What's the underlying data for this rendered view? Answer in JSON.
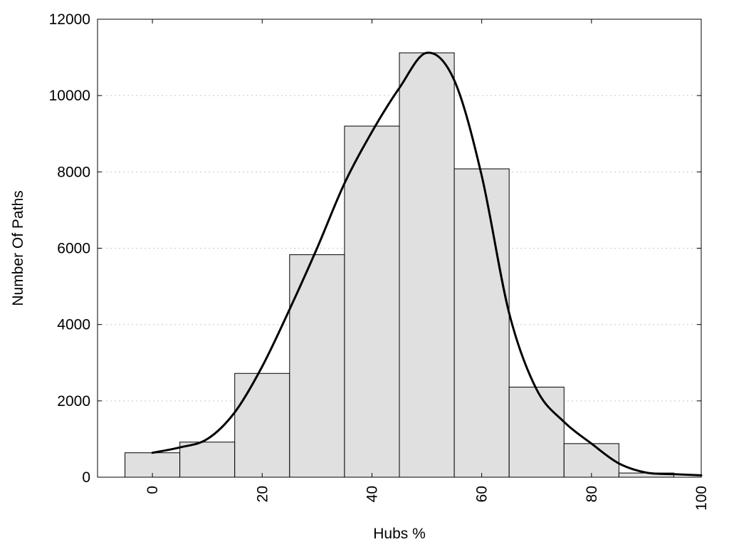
{
  "chart_data": {
    "type": "bar",
    "title": "",
    "xlabel": "Hubs %",
    "ylabel": "Number Of Paths",
    "xlim": [
      -10,
      100
    ],
    "ylim": [
      0,
      12000
    ],
    "grid": true,
    "x_ticks": [
      0,
      20,
      40,
      60,
      80,
      100
    ],
    "x_tick_labels": [
      "0",
      "20",
      "40",
      "60",
      "80",
      "100"
    ],
    "y_ticks": [
      0,
      2000,
      4000,
      6000,
      8000,
      10000,
      12000
    ],
    "y_tick_labels": [
      "0",
      "2000",
      "4000",
      "6000",
      "8000",
      "10000",
      "12000"
    ],
    "bin_width": 10,
    "categories": [
      0,
      10,
      20,
      30,
      40,
      50,
      60,
      70,
      80,
      90
    ],
    "values": [
      640,
      920,
      2720,
      5830,
      9200,
      11120,
      8080,
      2360,
      880,
      110
    ],
    "series": [
      {
        "type": "line",
        "x": [
          0,
          5,
          10,
          15,
          20,
          25,
          30,
          35,
          40,
          45,
          50,
          55,
          60,
          65,
          70,
          75,
          80,
          85,
          90,
          95,
          100
        ],
        "values": [
          640,
          780,
          1000,
          1700,
          2900,
          4400,
          6000,
          7700,
          9050,
          10200,
          11120,
          10400,
          7900,
          4300,
          2300,
          1450,
          880,
          360,
          120,
          80,
          50
        ]
      }
    ],
    "colors": {
      "bar_fill": "#e0e0e0",
      "bar_stroke": "#000000",
      "curve": "#000000",
      "grid": "#c8c8c8"
    }
  }
}
